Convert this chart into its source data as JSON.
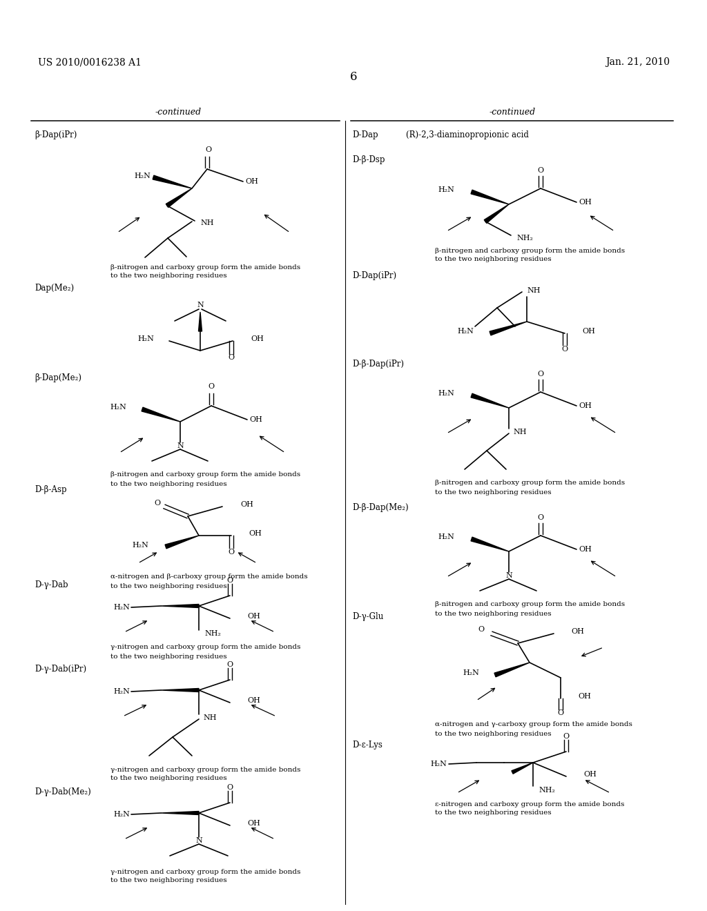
{
  "bg_color": "#ffffff",
  "header_left": "US 2010/0016238 A1",
  "header_right": "Jan. 21, 2010",
  "page_num": "6"
}
